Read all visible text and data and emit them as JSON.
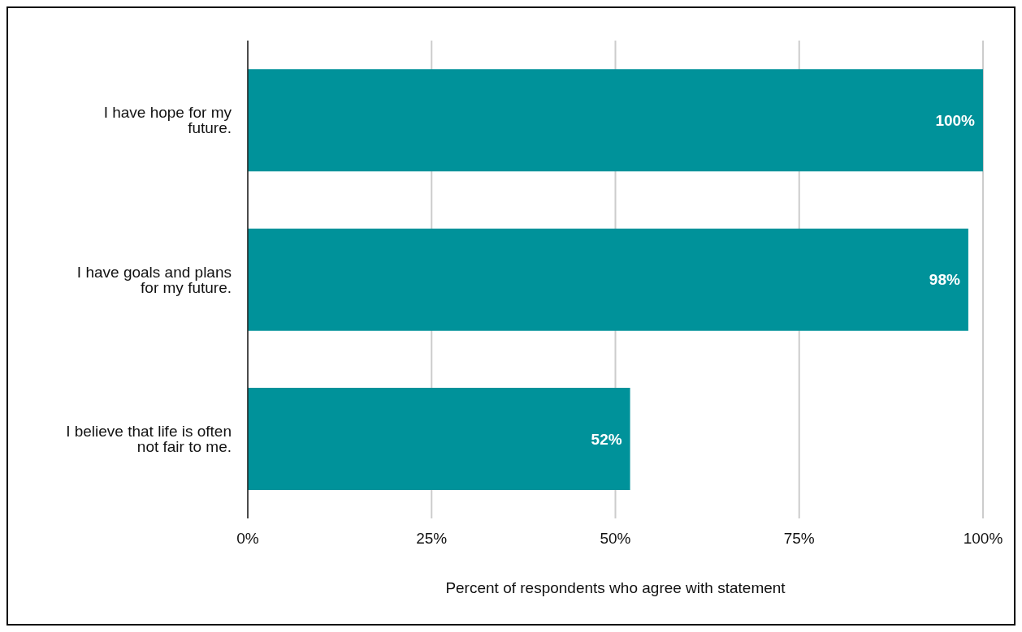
{
  "chart_data": {
    "type": "bar",
    "orientation": "horizontal",
    "xlabel": "Percent of respondents who agree with statement",
    "categories": [
      "I have hope for my future.",
      "I have goals and plans for my future.",
      "I believe that life is often not fair to me."
    ],
    "values": [
      100,
      98,
      52
    ],
    "color": "#00929a",
    "value_labels": [
      "100%",
      "98%",
      "52%"
    ],
    "xlim": [
      0,
      100
    ],
    "xticks": [
      {
        "value": 0,
        "label": "0%"
      },
      {
        "value": 25,
        "label": "25%"
      },
      {
        "value": 50,
        "label": "50%"
      },
      {
        "value": 75,
        "label": "75%"
      },
      {
        "value": 100,
        "label": "100%"
      }
    ],
    "grid": "x",
    "legend": false
  }
}
